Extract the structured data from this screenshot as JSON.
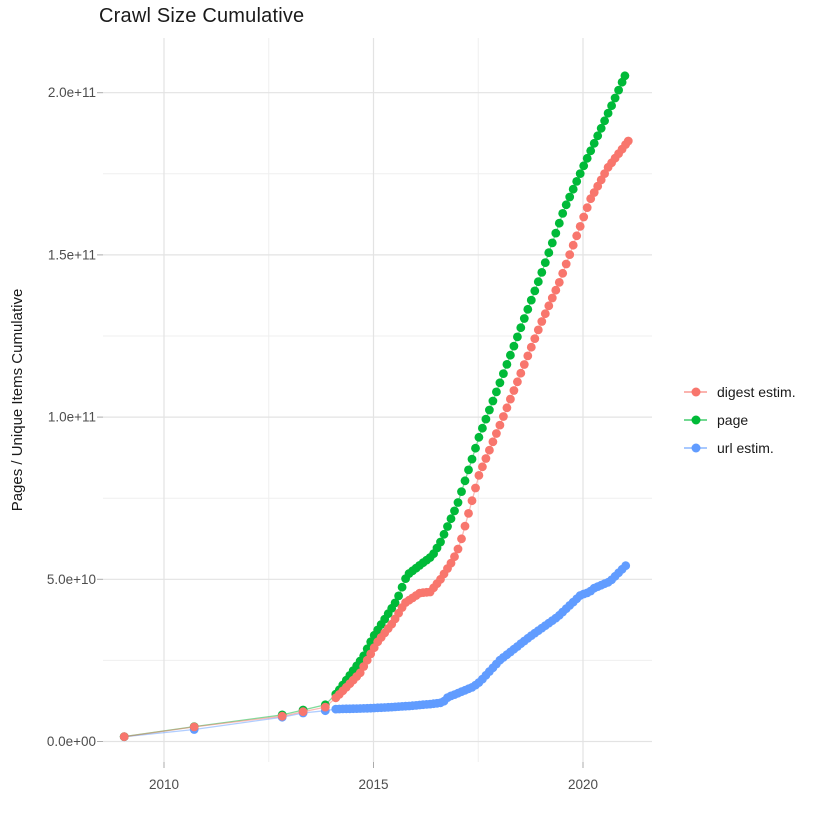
{
  "chart_data": {
    "type": "line",
    "title": "Crawl Size Cumulative",
    "xlabel": "",
    "ylabel": "Pages / Unique Items Cumulative",
    "x_tick_labels": [
      "2010",
      "2015",
      "2020"
    ],
    "x_tick_values": [
      2010,
      2015,
      2020
    ],
    "x_minor_values": [
      2012.5,
      2017.5
    ],
    "y_tick_labels": [
      "0.0e+00",
      "5.0e+10",
      "1.0e+11",
      "1.5e+11",
      "2.0e+11"
    ],
    "y_tick_values": [
      0,
      50000000000.0,
      100000000000.0,
      150000000000.0,
      200000000000.0
    ],
    "y_minor_values": [
      25000000000.0,
      75000000000.0,
      125000000000.0,
      175000000000.0
    ],
    "xlim": [
      2008.54,
      2021.65
    ],
    "ylim": [
      -6500000000.0,
      217000000000.0
    ],
    "grid": true,
    "legend_position": "right",
    "legend": [
      {
        "label": "digest estim.",
        "color": "#F8766D"
      },
      {
        "label": "page",
        "color": "#00BA38"
      },
      {
        "label": "url estim.",
        "color": "#619CFF"
      }
    ],
    "series": [
      {
        "name": "digest estim.",
        "color": "#F8766D",
        "sparse_points": [
          [
            2009.05,
            1480000000.0
          ],
          [
            2010.72,
            4500000000.0
          ],
          [
            2012.82,
            7800000000.0
          ],
          [
            2013.32,
            9200000000.0
          ],
          [
            2013.85,
            10600000000.0
          ]
        ],
        "anchors": [
          [
            2013.85,
            10600000000.0
          ],
          [
            2014.13,
            13800000000.0
          ],
          [
            2014.68,
            21100000000.0
          ],
          [
            2015.08,
            30400000000.0
          ],
          [
            2015.47,
            36800000000.0
          ],
          [
            2015.75,
            42700000000.0
          ],
          [
            2016.11,
            45800000000.0
          ],
          [
            2016.35,
            46100000000.0
          ],
          [
            2016.59,
            49800000000.0
          ],
          [
            2016.9,
            56000000000.0
          ],
          [
            2017.06,
            60600000000.0
          ],
          [
            2017.52,
            82200000000.0
          ],
          [
            2018.0,
            97000000000.0
          ],
          [
            2018.5,
            113000000000.0
          ],
          [
            2019.0,
            129000000000.0
          ],
          [
            2019.45,
            142000000000.0
          ],
          [
            2020.17,
            167000000000.0
          ],
          [
            2020.6,
            177000000000.0
          ],
          [
            2021.08,
            185100000000.0
          ]
        ],
        "monthly_from": 2014.1,
        "end_year": 2021.08
      },
      {
        "name": "page",
        "color": "#00BA38",
        "sparse_points": [
          [
            2009.05,
            1500000000.0
          ],
          [
            2010.72,
            4600000000.0
          ],
          [
            2012.82,
            8200000000.0
          ],
          [
            2013.32,
            9700000000.0
          ],
          [
            2013.85,
            11300000000.0
          ]
        ],
        "anchors": [
          [
            2013.85,
            11300000000.0
          ],
          [
            2014.13,
            15000000000.0
          ],
          [
            2014.75,
            26000000000.0
          ],
          [
            2014.99,
            32200000000.0
          ],
          [
            2015.56,
            43600000000.0
          ],
          [
            2015.8,
            51300000000.0
          ],
          [
            2016.11,
            54400000000.0
          ],
          [
            2016.4,
            57200000000.0
          ],
          [
            2016.59,
            61200000000.0
          ],
          [
            2017.0,
            73000000000.0
          ],
          [
            2017.52,
            93900000000.0
          ],
          [
            2018.0,
            110000000000.0
          ],
          [
            2018.5,
            127000000000.0
          ],
          [
            2019.0,
            144000000000.0
          ],
          [
            2019.55,
            164000000000.0
          ],
          [
            2020.0,
            177000000000.0
          ],
          [
            2020.72,
            197000000000.0
          ],
          [
            2021.0,
            205200000000.0
          ]
        ],
        "monthly_from": 2014.1,
        "end_year": 2021.0
      },
      {
        "name": "url estim.",
        "color": "#619CFF",
        "sparse_points": [
          [
            2009.05,
            1450000000.0
          ],
          [
            2010.72,
            3700000000.0
          ],
          [
            2012.82,
            7500000000.0
          ],
          [
            2013.32,
            8800000000.0
          ],
          [
            2013.85,
            9500000000.0
          ]
        ],
        "anchors": [
          [
            2013.85,
            9500000000.0
          ],
          [
            2014.1,
            10000000000.0
          ],
          [
            2014.8,
            10200000000.0
          ],
          [
            2015.3,
            10500000000.0
          ],
          [
            2015.9,
            11000000000.0
          ],
          [
            2016.4,
            11600000000.0
          ],
          [
            2016.65,
            12000000000.0
          ],
          [
            2016.78,
            13700000000.0
          ],
          [
            2017.0,
            14800000000.0
          ],
          [
            2017.37,
            16800000000.0
          ],
          [
            2017.54,
            18400000000.0
          ],
          [
            2018.02,
            25100000000.0
          ],
          [
            2018.73,
            32300000000.0
          ],
          [
            2019.4,
            38500000000.0
          ],
          [
            2019.95,
            45200000000.0
          ],
          [
            2020.15,
            46000000000.0
          ],
          [
            2020.25,
            47200000000.0
          ],
          [
            2020.64,
            49300000000.0
          ],
          [
            2021.02,
            54200000000.0
          ]
        ],
        "monthly_from": 2014.1,
        "end_year": 2021.02
      }
    ]
  }
}
